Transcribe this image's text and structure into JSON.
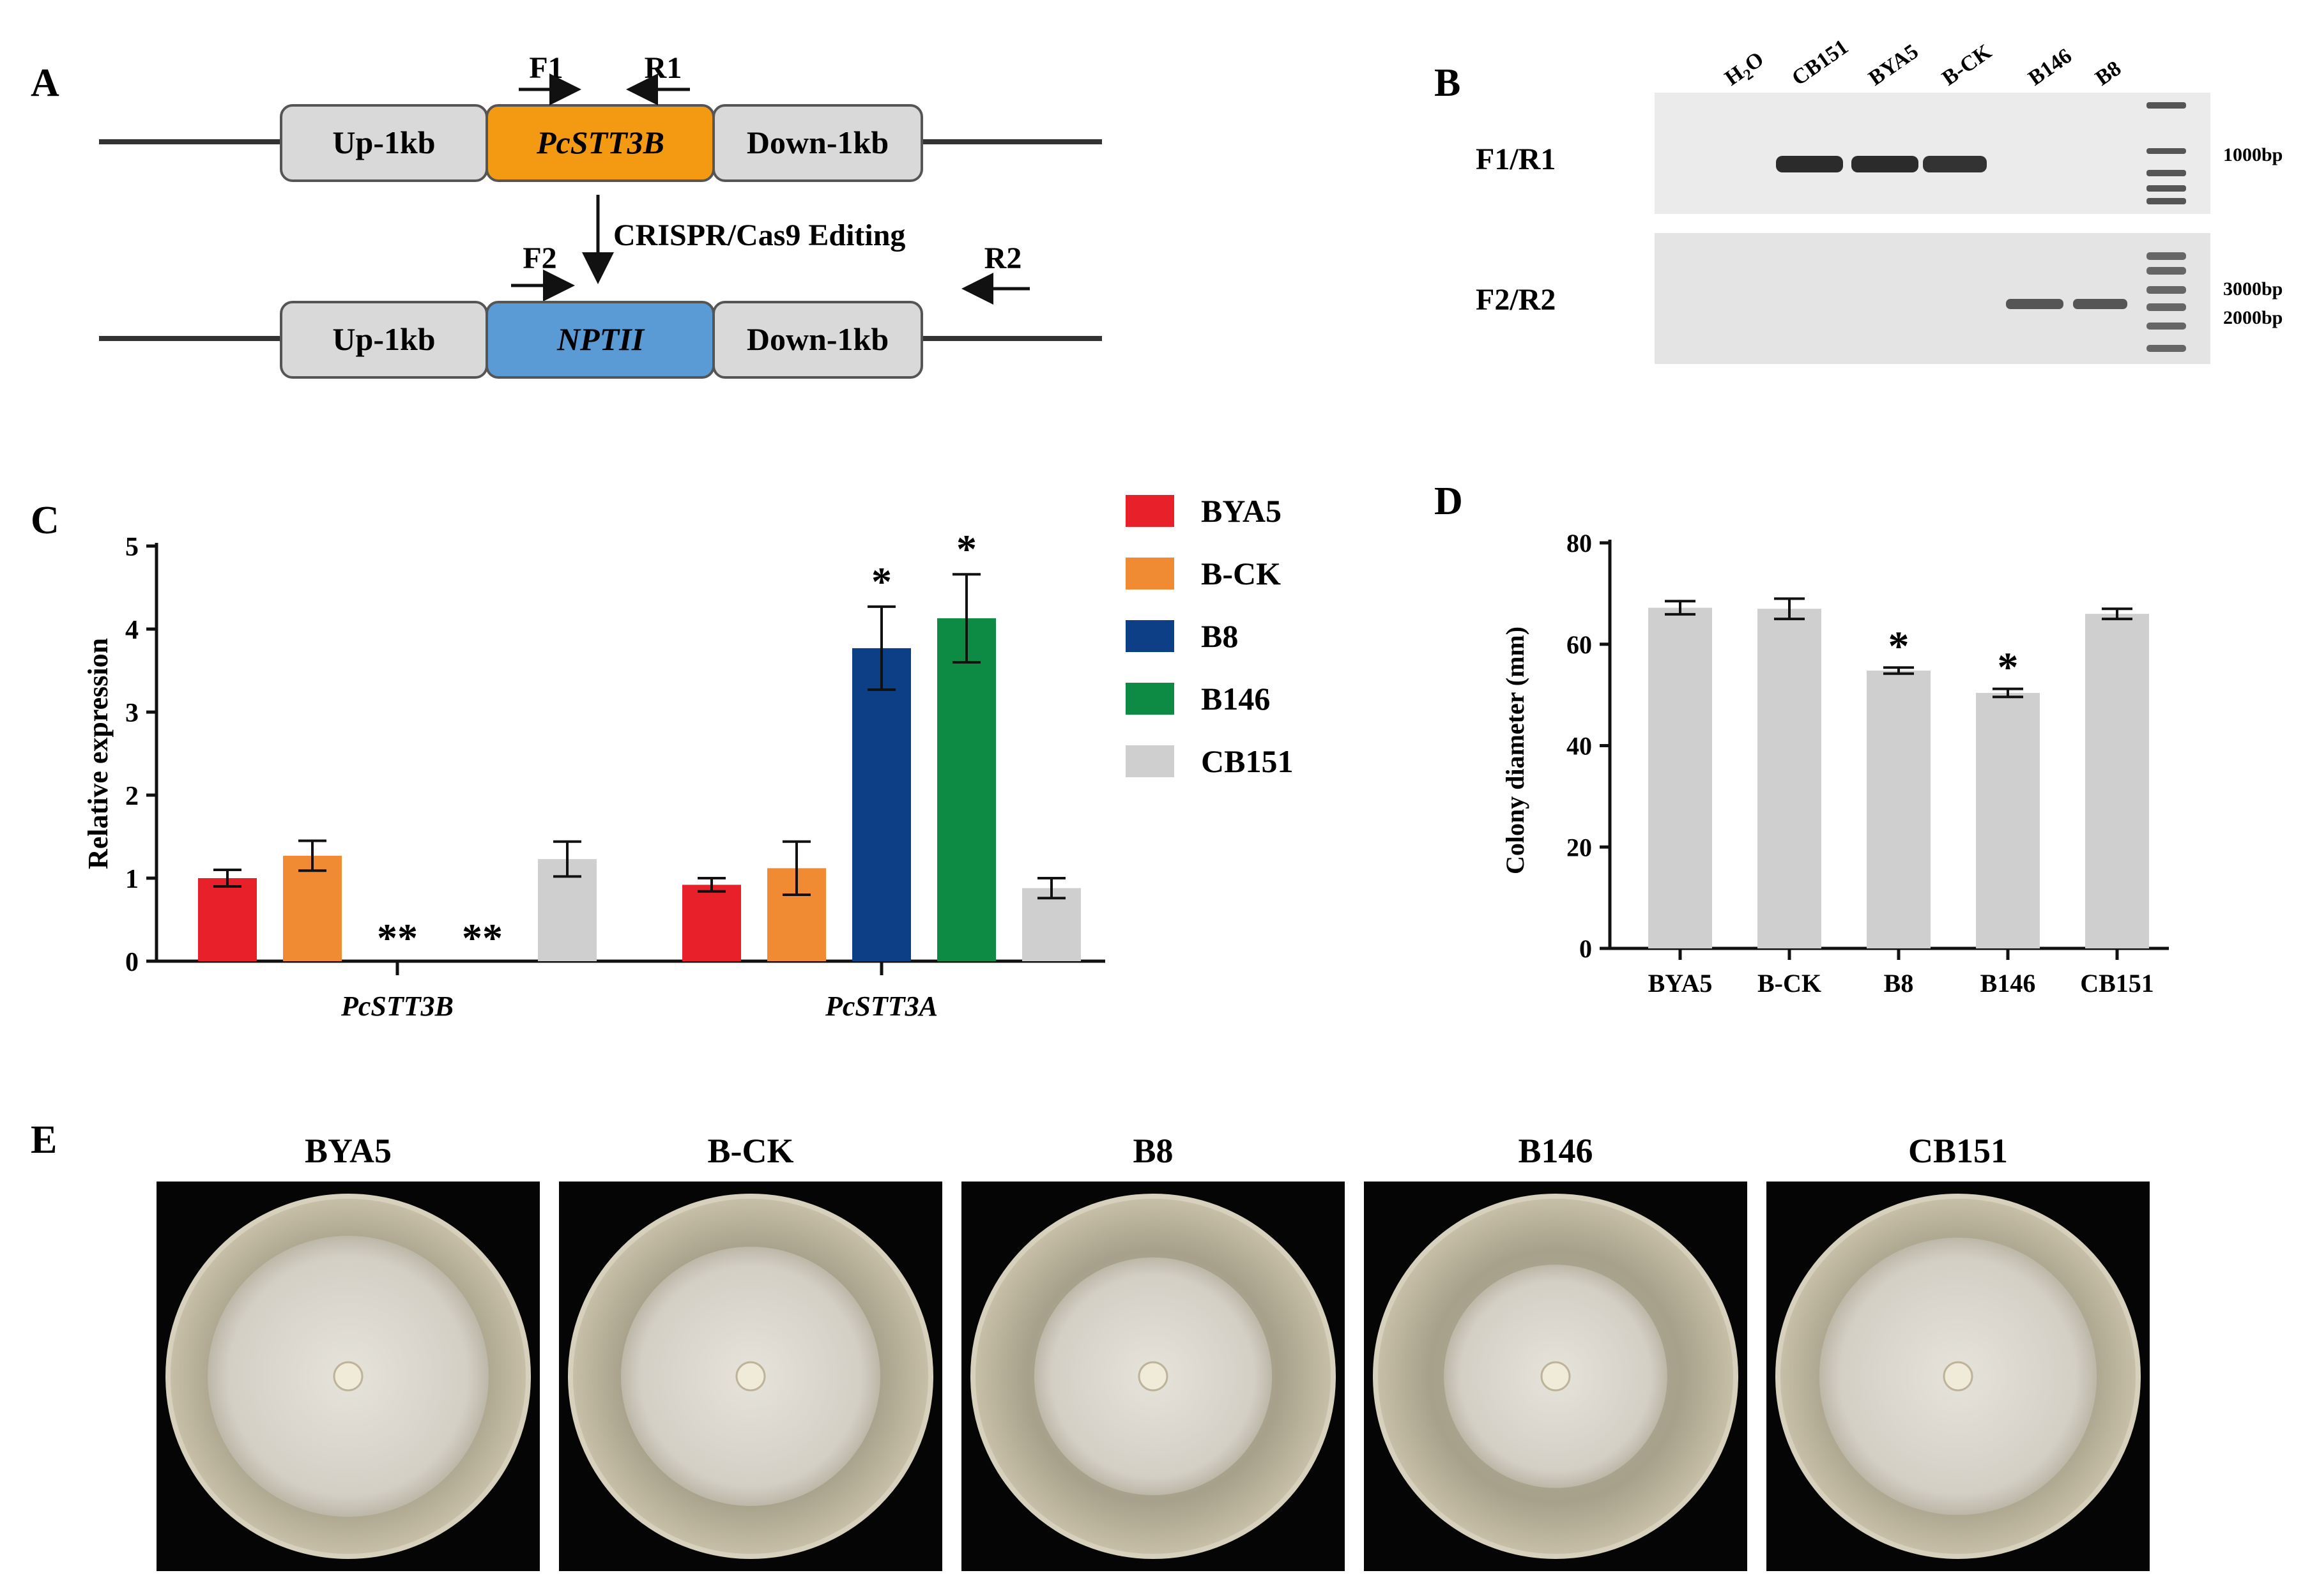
{
  "panels": {
    "A": "A",
    "B": "B",
    "C": "C",
    "D": "D",
    "E": "E"
  },
  "panel_a": {
    "top_boxes": [
      "Up-1kb",
      "PcSTT3B",
      "Down-1kb"
    ],
    "bottom_boxes": [
      "Up-1kb",
      "NPTII",
      "Down-1kb"
    ],
    "primers": {
      "F1": "F1",
      "R1": "R1",
      "F2": "F2",
      "R2": "R2"
    },
    "editing_label": "CRISPR/Cas9 Editing",
    "colors": {
      "gray_box": "#d9d9d9",
      "target": "#f39a12",
      "marker": "#5b9bd5"
    }
  },
  "panel_b": {
    "lanes": [
      "H",
      "CB151",
      "BYA5",
      "B-CK",
      "B146",
      "B8"
    ],
    "h2o_subscript": "2",
    "h2o_suffix": "O",
    "row_labels": [
      "F1/R1",
      "F2/R2"
    ],
    "size_labels": [
      "1000bp",
      "3000bp",
      "2000bp"
    ]
  },
  "chart_data": [
    {
      "type": "bar",
      "panel": "C",
      "ylabel": "Relative expression",
      "ylim": [
        0,
        5
      ],
      "yticks": [
        "0",
        "1",
        "2",
        "3",
        "4",
        "5"
      ],
      "categories": [
        "PcSTT3B",
        "PcSTT3A"
      ],
      "series": [
        {
          "name": "BYA5",
          "color": "#e8202a",
          "values": [
            1.0,
            0.92
          ],
          "errors": [
            0.1,
            0.08
          ],
          "sig": [
            "",
            ""
          ]
        },
        {
          "name": "B-CK",
          "color": "#f08a33",
          "values": [
            1.27,
            1.12
          ],
          "errors": [
            0.18,
            0.32
          ],
          "sig": [
            "",
            ""
          ]
        },
        {
          "name": "B8",
          "color": "#0d3f87",
          "values": [
            0,
            3.77
          ],
          "errors": [
            0,
            0.5
          ],
          "sig": [
            "**",
            "*"
          ]
        },
        {
          "name": "B146",
          "color": "#0d8a44",
          "values": [
            0,
            4.13
          ],
          "errors": [
            0,
            0.53
          ],
          "sig": [
            "**",
            "*"
          ]
        },
        {
          "name": "CB151",
          "color": "#cfcfcf",
          "values": [
            1.23,
            0.88
          ],
          "errors": [
            0.21,
            0.12
          ],
          "sig": [
            "",
            ""
          ]
        }
      ],
      "legend": "right"
    },
    {
      "type": "bar",
      "panel": "D",
      "ylabel": "Colony diameter (mm)",
      "ylim": [
        0,
        80
      ],
      "yticks": [
        "0",
        "20",
        "40",
        "60",
        "80"
      ],
      "categories": [
        "BYA5",
        "B-CK",
        "B8",
        "B146",
        "CB151"
      ],
      "values": [
        67.2,
        67.0,
        54.8,
        50.4,
        66.0
      ],
      "errors": [
        1.3,
        2.0,
        0.6,
        0.8,
        1.0
      ],
      "sig": [
        "",
        "",
        "*",
        "*",
        ""
      ],
      "color": "#cfcfcf"
    }
  ],
  "panel_e": {
    "labels": [
      "BYA5",
      "B-CK",
      "B8",
      "B146",
      "CB151"
    ]
  }
}
